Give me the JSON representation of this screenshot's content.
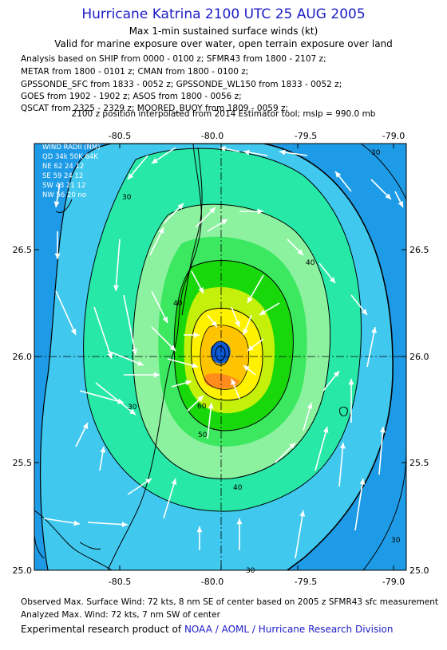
{
  "header": {
    "title": "Hurricane Katrina 2100 UTC 25 AUG 2005",
    "subtitle_1": "Max 1-min sustained surface winds (kt)",
    "subtitle_2": "Valid for marine exposure over water, open terrain exposure over land",
    "sources": [
      "Analysis based on  SHIP from 0000 - 0100 z;  SFMR43 from 1800 - 2107 z;",
      "METAR from 1800 - 0101 z;  CMAN from 1800 - 0100 z;",
      "GPSSONDE_SFC from 1833 - 0052 z;  GPSSONDE_WL150 from 1833 - 0052 z;",
      "GOES from 1902 - 1902 z;  ASOS from 1800 - 0056 z;",
      "QSCAT from 2325 - 2329 z;  MOORED_BUOY from 1809 - 0059 z;"
    ],
    "interpolation_note": "2100 z position interpolated from 2014 Estimator tool; mslp = 990.0 mb"
  },
  "map": {
    "lon_ticks": [
      "-80.5",
      "-80.0",
      "-79.5",
      "-79.0"
    ],
    "lat_ticks": [
      "26.5",
      "26.0",
      "25.5",
      "25.0"
    ],
    "contour_labels": [
      "30",
      "30",
      "30",
      "30",
      "30",
      "40",
      "40",
      "40",
      "50",
      "60"
    ],
    "wind_radii": {
      "title": "WIND RADII (NM)",
      "header": "QD 34k 50K 64K",
      "rows": [
        "NE  62  24  12",
        "SE  59  24  12",
        "SW  43  21  12",
        "NW  56  20  no"
      ]
    },
    "colors": {
      "band_20": "#1e9be6",
      "band_30": "#40c8ee",
      "band_40": "#28e8a8",
      "band_50": "#8cf2a0",
      "band_55": "#3ce860",
      "band_60": "#18d80c",
      "band_65": "#c4f00a",
      "band_70": "#fff200",
      "band_72": "#ffc400",
      "core_hi": "#ff8c1c",
      "eye": "#0a5ad8",
      "land_line": "#000000",
      "arrow": "#ffffff"
    }
  },
  "footer": {
    "observed": "Observed Max. Surface Wind: 72 kts, 8 nm SE of center based on 2005 z SFMR43 sfc measurement",
    "analyzed": "Analyzed Max. Wind: 72 kts, 7 nm SW of center",
    "product_prefix": "Experimental research product of",
    "organization": "NOAA / AOML / Hurricane Research Division"
  }
}
